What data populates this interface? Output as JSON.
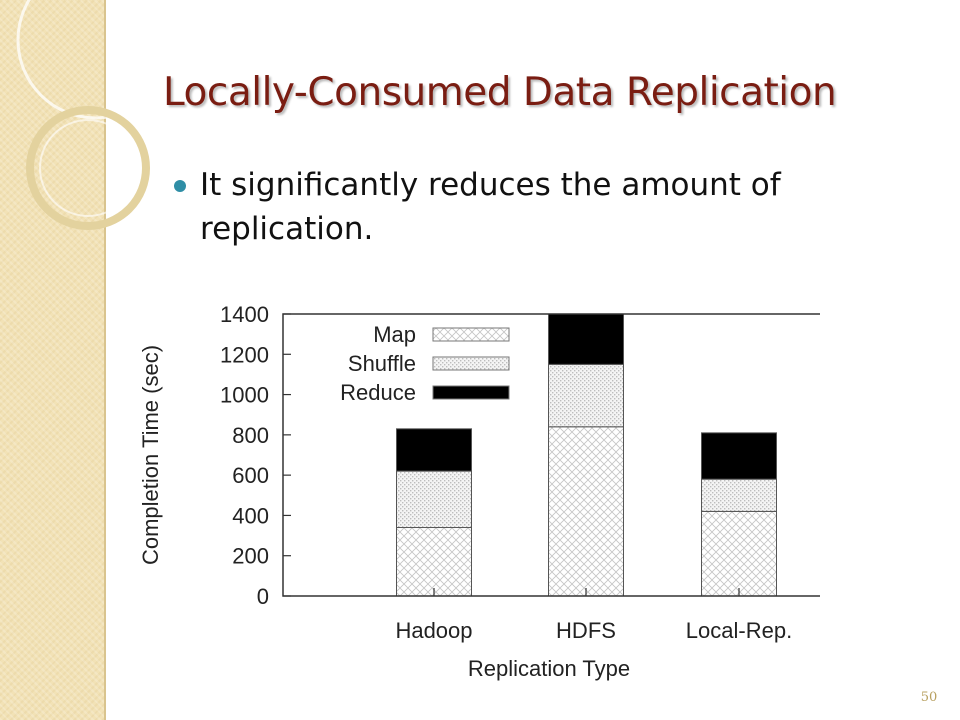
{
  "slide": {
    "title": "Locally-Consumed Data Replication",
    "bullets": [
      "It significantly reduces the amount of replication."
    ],
    "page_number": "50",
    "colors": {
      "title": "#7a1d12",
      "bullet": "#2f8ea6",
      "side_panel": "#f2e2b6"
    }
  },
  "chart_data": {
    "type": "bar",
    "stacked": true,
    "title": "",
    "xlabel": "Replication Type",
    "ylabel": "Completion Time (sec)",
    "categories": [
      "Hadoop",
      "HDFS",
      "Local-Rep."
    ],
    "ylim": [
      0,
      1400
    ],
    "yticks": [
      0,
      200,
      400,
      600,
      800,
      1000,
      1200,
      1400
    ],
    "legend_position": "top-left",
    "grid": false,
    "series": [
      {
        "name": "Map",
        "values": [
          340,
          840,
          420
        ],
        "pattern": "crosshatch"
      },
      {
        "name": "Shuffle",
        "values": [
          280,
          310,
          160
        ],
        "pattern": "dots"
      },
      {
        "name": "Reduce",
        "values": [
          210,
          250,
          230
        ],
        "pattern": "solid-black"
      }
    ]
  }
}
